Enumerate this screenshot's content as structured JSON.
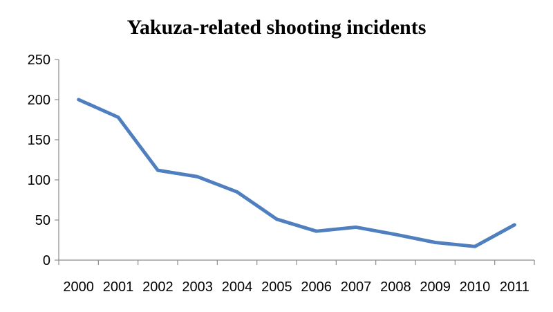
{
  "chart_data": {
    "type": "line",
    "title": "Yakuza-related shooting incidents",
    "xlabel": "",
    "ylabel": "",
    "categories": [
      "2000",
      "2001",
      "2002",
      "2003",
      "2004",
      "2005",
      "2006",
      "2007",
      "2008",
      "2009",
      "2010",
      "2011"
    ],
    "series": [
      {
        "values": [
          200,
          178,
          112,
          104,
          85,
          51,
          36,
          41,
          32,
          22,
          17,
          44
        ],
        "color": "#4f7fbf"
      }
    ],
    "ylim": [
      0,
      250
    ],
    "yticks": [
      0,
      50,
      100,
      150,
      200,
      250
    ],
    "grid": false,
    "legend": "none"
  }
}
